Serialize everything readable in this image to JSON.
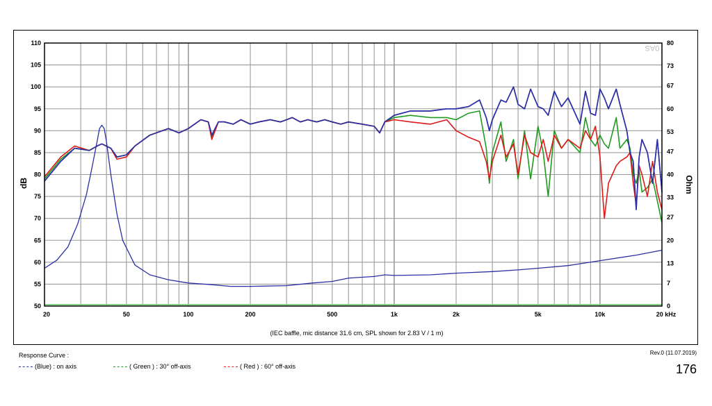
{
  "caption": "(IEC baffle, mic distance 31.6 cm, SPL shown for 2.83 V / 1 m)",
  "legend_title": "Response Curve :",
  "legend": [
    {
      "label": "(Blue)  : on axis",
      "color": "#2b2fa6"
    },
    {
      "label": "( Green ) : 30° off-axis",
      "color": "#1f9a1f"
    },
    {
      "label": "( Red ) : 60° off-axis",
      "color": "#e01818"
    }
  ],
  "revision": "Rev.0 (11.07.2019)",
  "page_number": "176",
  "corner_mark": "0AS",
  "colors": {
    "blue": "#2b2fa6",
    "green": "#1f9a1f",
    "red": "#e01818",
    "impedance": "#2b2fa6",
    "baseline": "#7fd47f"
  },
  "chart_data": {
    "type": "line",
    "xlabel": "",
    "ylabel": "dB",
    "y2label": "Ohm",
    "x_scale": "log",
    "xlim": [
      20,
      20000
    ],
    "ylim": [
      50,
      110
    ],
    "y2lim": [
      0,
      80
    ],
    "grid": true,
    "x_ticks": [
      {
        "value": 20,
        "label": "20"
      },
      {
        "value": 50,
        "label": "50"
      },
      {
        "value": 100,
        "label": "100"
      },
      {
        "value": 200,
        "label": "200"
      },
      {
        "value": 500,
        "label": "500"
      },
      {
        "value": 1000,
        "label": "1k"
      },
      {
        "value": 2000,
        "label": "2k"
      },
      {
        "value": 5000,
        "label": "5k"
      },
      {
        "value": 10000,
        "label": "10k"
      },
      {
        "value": 20000,
        "label": "20 kHz"
      }
    ],
    "y_ticks": [
      50,
      55,
      60,
      65,
      70,
      75,
      80,
      85,
      90,
      95,
      100,
      105,
      110
    ],
    "y2_ticks": [
      0,
      7,
      13,
      20,
      27,
      33,
      40,
      47,
      53,
      60,
      67,
      73,
      80
    ],
    "series": [
      {
        "name": "(Blue)  : on axis",
        "color": "#2b2fa6",
        "axis": "dB",
        "x": [
          20,
          24,
          28,
          33,
          36,
          38,
          42,
          45,
          50,
          55,
          65,
          80,
          90,
          100,
          115,
          125,
          130,
          140,
          150,
          165,
          180,
          200,
          220,
          250,
          280,
          300,
          320,
          350,
          380,
          420,
          460,
          500,
          550,
          600,
          700,
          800,
          850,
          900,
          1000,
          1200,
          1500,
          1800,
          2000,
          2300,
          2600,
          2800,
          2900,
          3000,
          3300,
          3500,
          3800,
          4000,
          4300,
          4600,
          5000,
          5300,
          5600,
          6000,
          6500,
          7000,
          8000,
          8500,
          9000,
          9500,
          10000,
          10500,
          11000,
          12000,
          12500,
          13500,
          14000,
          14500,
          15000,
          15500,
          16000,
          17000,
          18000,
          19000,
          20000
        ],
        "y": [
          78.5,
          83,
          86,
          85.5,
          86.5,
          87,
          86,
          84,
          84.5,
          86.5,
          89,
          90.5,
          89.5,
          90.5,
          92.5,
          92,
          89,
          92,
          92,
          91.5,
          92.5,
          91.5,
          92,
          92.5,
          92,
          92.5,
          93,
          92,
          92.5,
          92,
          92.5,
          92,
          91.5,
          92,
          91.5,
          91,
          89.5,
          92,
          93.5,
          94.5,
          94.5,
          95,
          95,
          95.5,
          97,
          93,
          90,
          92.5,
          97,
          96.5,
          100,
          96,
          95,
          99.5,
          95.5,
          95,
          93.5,
          99,
          95.5,
          97.5,
          91.5,
          99,
          94,
          93.5,
          99.5,
          97.5,
          95,
          99.5,
          96,
          90,
          85,
          83,
          72,
          84,
          88,
          85,
          78,
          88,
          76
        ]
      },
      {
        "name": "( Green ) : 30° off-axis",
        "color": "#1f9a1f",
        "axis": "dB",
        "x": [
          20,
          24,
          28,
          33,
          36,
          38,
          42,
          45,
          50,
          55,
          65,
          80,
          90,
          100,
          115,
          125,
          130,
          140,
          150,
          165,
          180,
          200,
          220,
          250,
          280,
          300,
          320,
          350,
          380,
          420,
          460,
          500,
          550,
          600,
          700,
          800,
          850,
          900,
          1000,
          1200,
          1500,
          1800,
          2000,
          2300,
          2600,
          2800,
          2900,
          3000,
          3300,
          3500,
          3800,
          4000,
          4300,
          4600,
          5000,
          5300,
          5600,
          6000,
          6500,
          7000,
          8000,
          8500,
          9000,
          9500,
          10000,
          10500,
          11000,
          12000,
          12500,
          13500,
          14000,
          14500,
          15000,
          15500,
          16000,
          17000,
          18000,
          19000,
          20000
        ],
        "y": [
          79,
          83.5,
          86,
          85.5,
          86.5,
          87,
          86,
          84,
          84.5,
          86.5,
          89,
          90.5,
          89.5,
          90.5,
          92.5,
          92,
          88.5,
          92,
          92,
          91.5,
          92.5,
          91.5,
          92,
          92.5,
          92,
          92.5,
          93,
          92,
          92.5,
          92,
          92.5,
          92,
          91.5,
          92,
          91.5,
          91,
          89.5,
          92,
          93,
          93.5,
          93,
          93,
          92.5,
          94,
          94.5,
          86,
          78,
          85,
          92,
          83,
          88,
          79,
          90,
          79,
          91,
          85,
          75,
          90,
          86,
          88,
          85,
          93,
          88,
          86.5,
          89,
          87,
          86,
          93,
          86,
          88,
          86,
          80,
          78,
          81,
          76,
          77,
          79,
          74,
          69
        ]
      },
      {
        "name": "( Red ) : 60° off-axis",
        "color": "#e01818",
        "axis": "dB",
        "x": [
          20,
          24,
          28,
          33,
          36,
          38,
          42,
          45,
          50,
          55,
          65,
          80,
          90,
          100,
          115,
          125,
          130,
          140,
          150,
          165,
          180,
          200,
          220,
          250,
          280,
          300,
          320,
          350,
          380,
          420,
          460,
          500,
          550,
          600,
          700,
          800,
          850,
          900,
          1000,
          1200,
          1500,
          1800,
          2000,
          2300,
          2600,
          2800,
          2900,
          3000,
          3300,
          3500,
          3800,
          4000,
          4300,
          4600,
          5000,
          5300,
          5600,
          6000,
          6500,
          7000,
          8000,
          8500,
          9000,
          9500,
          10000,
          10500,
          11000,
          12000,
          12500,
          13500,
          14000,
          14500,
          15000,
          15500,
          16000,
          17000,
          18000,
          19000,
          20000
        ],
        "y": [
          79.5,
          84,
          86.5,
          85.5,
          86.5,
          87,
          86,
          83.5,
          84,
          86.5,
          89,
          90.5,
          89.5,
          90.5,
          92.5,
          92,
          88,
          92,
          92,
          91.5,
          92.5,
          91.5,
          92,
          92.5,
          92,
          92.5,
          93,
          92,
          92.5,
          92,
          92.5,
          92,
          91.5,
          92,
          91.5,
          91,
          89.5,
          92,
          92.5,
          92,
          91.5,
          92.5,
          90,
          88.5,
          87.5,
          83,
          79,
          83,
          89,
          84,
          87,
          80,
          89,
          85,
          84,
          88,
          83,
          89,
          86,
          88,
          86,
          90,
          88,
          91,
          84,
          70,
          78,
          82,
          83,
          84,
          85,
          78,
          73,
          82,
          80,
          75,
          83,
          76,
          72
        ]
      },
      {
        "name": "",
        "color": "#2b2fa6",
        "axis": "Ohm",
        "x": [
          20,
          23,
          26,
          29,
          32,
          34,
          36,
          37,
          38,
          39,
          40,
          42,
          45,
          48,
          55,
          65,
          80,
          100,
          130,
          160,
          200,
          300,
          400,
          500,
          600,
          800,
          900,
          1000,
          1500,
          2000,
          3000,
          4000,
          5000,
          7000,
          10000,
          15000,
          20000
        ],
        "y": [
          11.5,
          14,
          18,
          25,
          34,
          42,
          50,
          54,
          55,
          54,
          50,
          40,
          28,
          20,
          12.5,
          9.5,
          8,
          7,
          6.5,
          6,
          6,
          6.2,
          7,
          7.5,
          8.5,
          9,
          9.5,
          9.3,
          9.5,
          10,
          10.5,
          11,
          11.5,
          12.3,
          13.8,
          15.5,
          17
        ]
      }
    ]
  }
}
